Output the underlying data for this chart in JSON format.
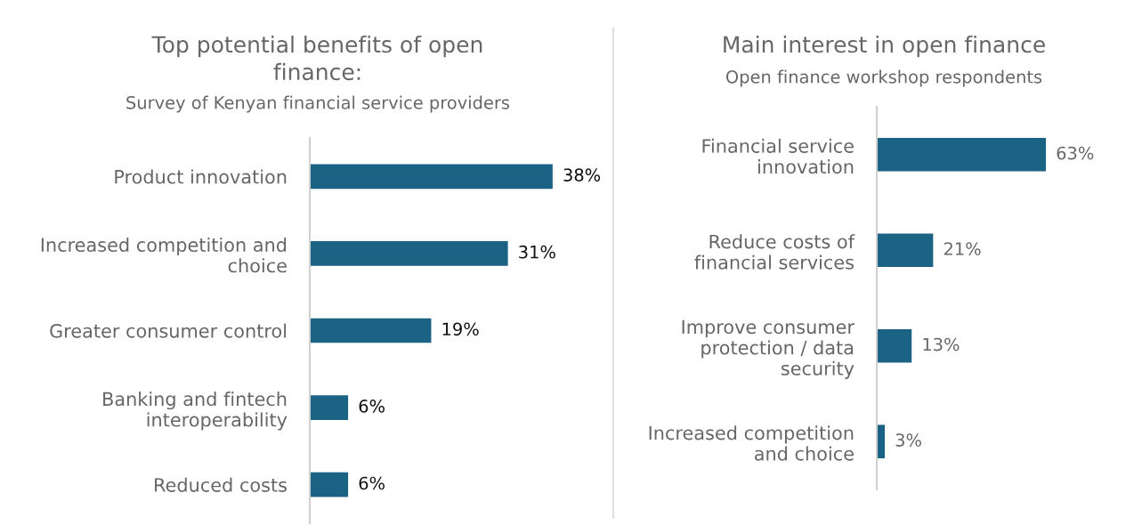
{
  "chart_data": [
    {
      "type": "bar",
      "orientation": "horizontal",
      "title": "Top potential benefits of open\nfinance:",
      "subtitle": "Survey of Kenyan financial service providers",
      "categories": [
        "Product innovation",
        "Increased competition and\nchoice",
        "Greater consumer control",
        "Banking and fintech\ninteroperability",
        "Reduced costs"
      ],
      "values": [
        38,
        31,
        19,
        6,
        6
      ],
      "value_labels": [
        "38%",
        "31%",
        "19%",
        "6%",
        "6%"
      ],
      "color": "#1a6384",
      "grid": false,
      "legend": false
    },
    {
      "type": "bar",
      "orientation": "horizontal",
      "title": "Main interest in open finance",
      "subtitle": "Open finance workshop respondents",
      "categories": [
        "Financial service\ninnovation",
        "Reduce costs of\nfinancial services",
        "Improve consumer\nprotection / data\nsecurity",
        "Increased competition\nand choice"
      ],
      "values": [
        63,
        21,
        13,
        3
      ],
      "value_labels": [
        "63%",
        "21%",
        "13%",
        "3%"
      ],
      "color": "#1a6384",
      "grid": false,
      "legend": false
    }
  ]
}
